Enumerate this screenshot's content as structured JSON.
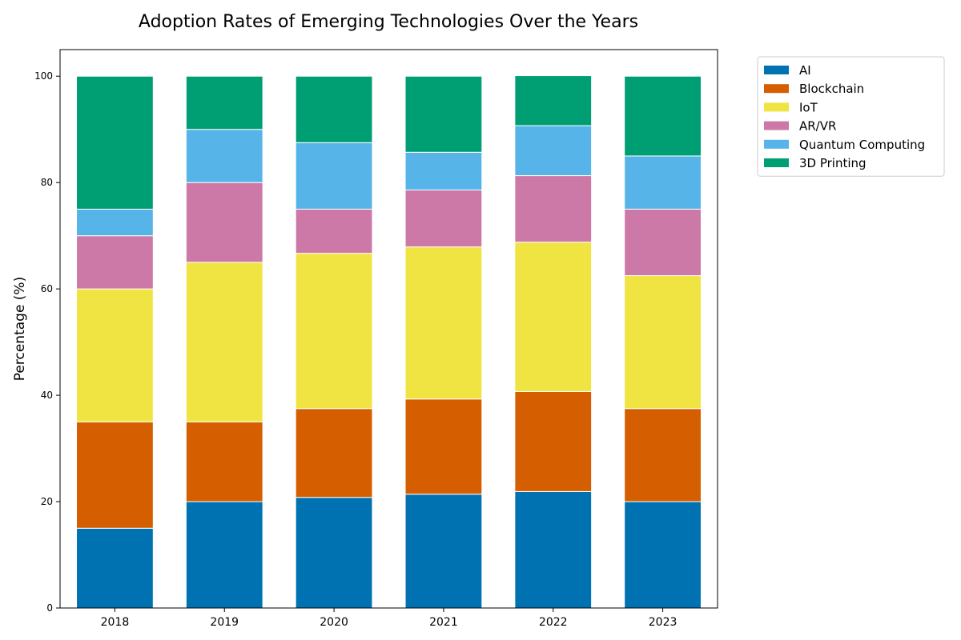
{
  "chart_data": {
    "type": "bar",
    "stacked": true,
    "title": "Adoption Rates of Emerging Technologies Over the Years",
    "xlabel": "",
    "ylabel": "Percentage (%)",
    "ylim": [
      0,
      105
    ],
    "yticks": [
      0,
      20,
      40,
      60,
      80,
      100
    ],
    "grid": false,
    "legend_position": "outside-top-right",
    "categories": [
      "2018",
      "2019",
      "2020",
      "2021",
      "2022",
      "2023"
    ],
    "series": [
      {
        "name": "AI",
        "color": "#0072B2",
        "values": [
          15,
          20,
          20.8,
          21.4,
          21.9,
          20
        ]
      },
      {
        "name": "Blockchain",
        "color": "#D55E00",
        "values": [
          20,
          15,
          16.7,
          17.9,
          18.8,
          17.5
        ]
      },
      {
        "name": "IoT",
        "color": "#F0E442",
        "values": [
          25,
          30,
          29.2,
          28.6,
          28.1,
          25
        ]
      },
      {
        "name": "AR/VR",
        "color": "#CC79A7",
        "values": [
          10,
          15,
          8.3,
          10.7,
          12.5,
          12.5
        ]
      },
      {
        "name": "Quantum Computing",
        "color": "#56B4E9",
        "values": [
          5,
          10,
          12.5,
          7.1,
          9.4,
          10
        ]
      },
      {
        "name": "3D Printing",
        "color": "#009E73",
        "values": [
          25,
          10,
          12.5,
          14.3,
          9.4,
          15
        ]
      }
    ]
  }
}
